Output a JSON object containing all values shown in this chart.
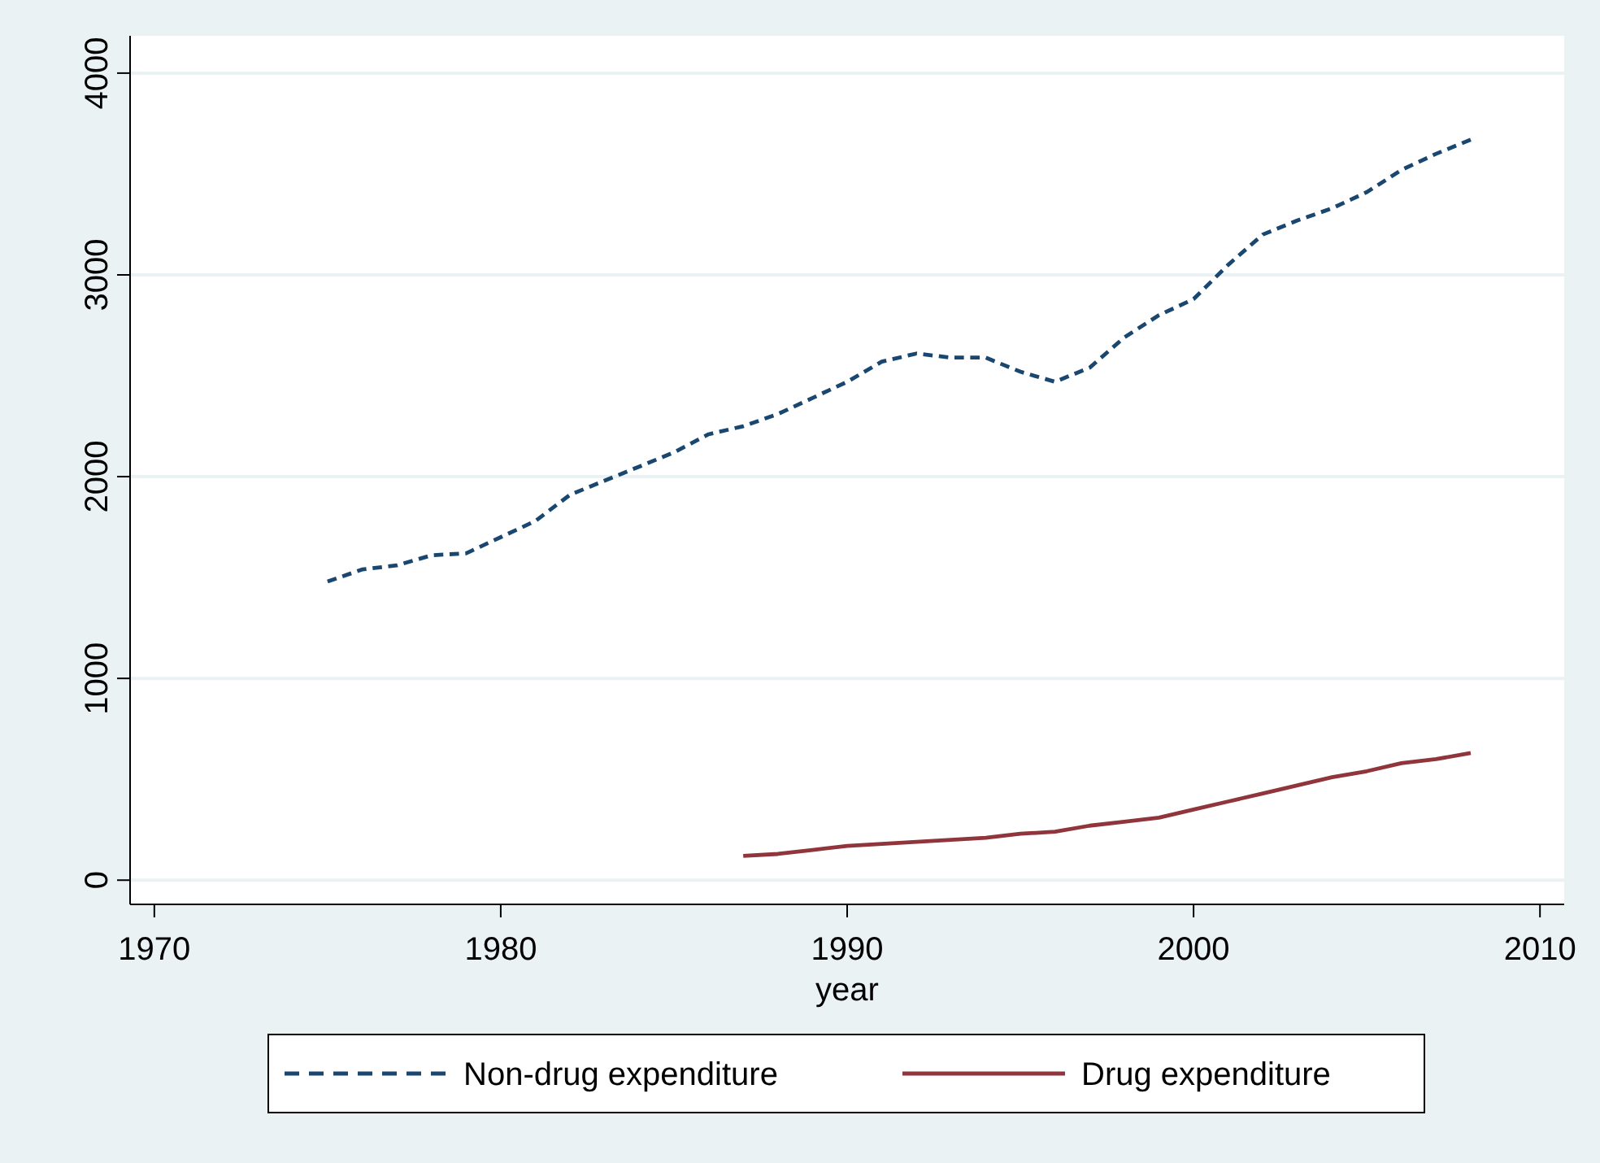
{
  "chart_data": {
    "type": "line",
    "xlabel": "year",
    "x": [
      1975,
      1976,
      1977,
      1978,
      1979,
      1980,
      1981,
      1982,
      1983,
      1984,
      1985,
      1986,
      1987,
      1988,
      1989,
      1990,
      1991,
      1992,
      1993,
      1994,
      1995,
      1996,
      1997,
      1998,
      1999,
      2000,
      2001,
      2002,
      2003,
      2004,
      2005,
      2006,
      2007,
      2008
    ],
    "series": [
      {
        "name": "Non-drug expenditure",
        "color": "#1a476f",
        "line_style": "dashed",
        "values": [
          1480,
          1540,
          1560,
          1610,
          1620,
          1700,
          1780,
          1910,
          1980,
          2050,
          2120,
          2210,
          2250,
          2310,
          2390,
          2470,
          2570,
          2610,
          2590,
          2590,
          2520,
          2470,
          2540,
          2690,
          2800,
          2880,
          3050,
          3200,
          3270,
          3330,
          3410,
          3520,
          3600,
          3670
        ]
      },
      {
        "name": "Drug expenditure",
        "color": "#90353b",
        "line_style": "solid",
        "x": [
          1987,
          1988,
          1989,
          1990,
          1991,
          1992,
          1993,
          1994,
          1995,
          1996,
          1997,
          1998,
          1999,
          2000,
          2001,
          2002,
          2003,
          2004,
          2005,
          2006,
          2007,
          2008
        ],
        "values": [
          120,
          130,
          150,
          170,
          180,
          190,
          200,
          210,
          230,
          240,
          270,
          290,
          310,
          350,
          390,
          430,
          470,
          510,
          540,
          580,
          600,
          630
        ]
      }
    ],
    "xlim": [
      1969.3,
      2010.7
    ],
    "ylim": [
      -120,
      4185
    ],
    "xticks": [
      1970,
      1980,
      1990,
      2000,
      2010
    ],
    "yticks": [
      0,
      1000,
      2000,
      3000,
      4000
    ],
    "grid": "y",
    "legend": "bottom"
  }
}
